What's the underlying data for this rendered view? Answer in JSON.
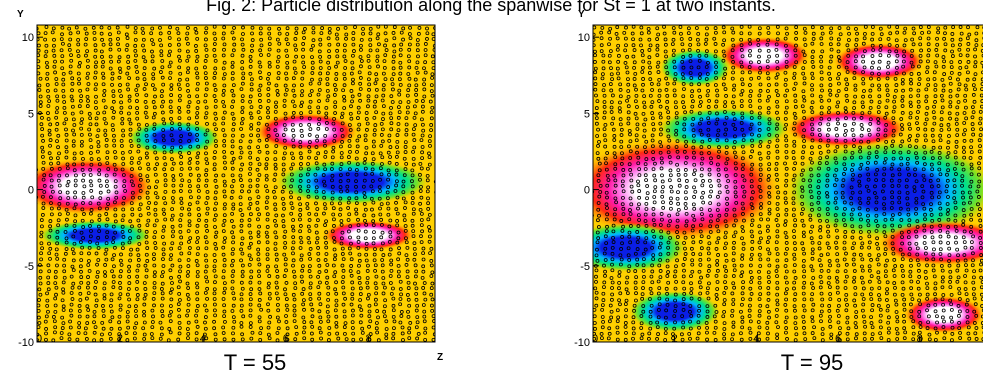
{
  "caption": "Fig. 2: Particle distribution along the spanwise for St = 1 at two instants.",
  "chart_data": [
    {
      "type": "heatmap",
      "panel_label": "T = 55",
      "xlabel": "Z",
      "ylabel": "Y",
      "xlim": [
        0,
        9.6
      ],
      "ylim": [
        -10,
        10.8
      ],
      "x_ticks": [
        "0",
        "2",
        "4",
        "6",
        "8"
      ],
      "y_ticks": [
        "10",
        "5",
        "0",
        "-5",
        "-10"
      ],
      "background_color": "#FFD000",
      "blobs": [
        {
          "cx": 1.2,
          "cy": 0.2,
          "rx": 1.3,
          "ry": 1.5,
          "value": "high"
        },
        {
          "cx": 7.6,
          "cy": 0.5,
          "rx": 1.5,
          "ry": 1.2,
          "value": "low"
        },
        {
          "cx": 3.3,
          "cy": 3.4,
          "rx": 0.9,
          "ry": 0.9,
          "value": "low"
        },
        {
          "cx": 6.5,
          "cy": 3.8,
          "rx": 1.0,
          "ry": 1.0,
          "value": "high"
        },
        {
          "cx": 1.4,
          "cy": -3.0,
          "rx": 1.1,
          "ry": 0.8,
          "value": "low"
        },
        {
          "cx": 8.0,
          "cy": -3.0,
          "rx": 0.9,
          "ry": 0.8,
          "value": "high"
        }
      ]
    },
    {
      "type": "heatmap",
      "panel_label": "T = 95",
      "xlabel": "Z",
      "ylabel": "Y",
      "xlim": [
        0,
        9.6
      ],
      "ylim": [
        -10,
        10.8
      ],
      "x_ticks": [
        "0",
        "2",
        "4",
        "6",
        "8"
      ],
      "y_ticks": [
        "10",
        "5",
        "0",
        "-5",
        "-10"
      ],
      "background_color": "#FFD000",
      "blobs": [
        {
          "cx": 2.0,
          "cy": 0.0,
          "rx": 2.1,
          "ry": 2.7,
          "value": "high"
        },
        {
          "cx": 7.3,
          "cy": 0.0,
          "rx": 2.1,
          "ry": 2.6,
          "value": "low"
        },
        {
          "cx": 3.2,
          "cy": 4.0,
          "rx": 1.3,
          "ry": 1.1,
          "value": "low"
        },
        {
          "cx": 6.2,
          "cy": 4.0,
          "rx": 1.2,
          "ry": 1.0,
          "value": "high"
        },
        {
          "cx": 0.8,
          "cy": -3.8,
          "rx": 1.2,
          "ry": 1.3,
          "value": "low"
        },
        {
          "cx": 8.6,
          "cy": -3.5,
          "rx": 1.3,
          "ry": 1.2,
          "value": "high"
        },
        {
          "cx": 4.2,
          "cy": 8.8,
          "rx": 0.9,
          "ry": 1.0,
          "value": "high"
        },
        {
          "cx": 7.0,
          "cy": 8.4,
          "rx": 0.9,
          "ry": 1.0,
          "value": "high"
        },
        {
          "cx": 2.5,
          "cy": 8.0,
          "rx": 0.7,
          "ry": 1.0,
          "value": "low"
        },
        {
          "cx": 2.0,
          "cy": -8.0,
          "rx": 0.9,
          "ry": 1.1,
          "value": "low"
        },
        {
          "cx": 8.6,
          "cy": -8.2,
          "rx": 0.8,
          "ry": 1.0,
          "value": "high"
        }
      ]
    }
  ]
}
